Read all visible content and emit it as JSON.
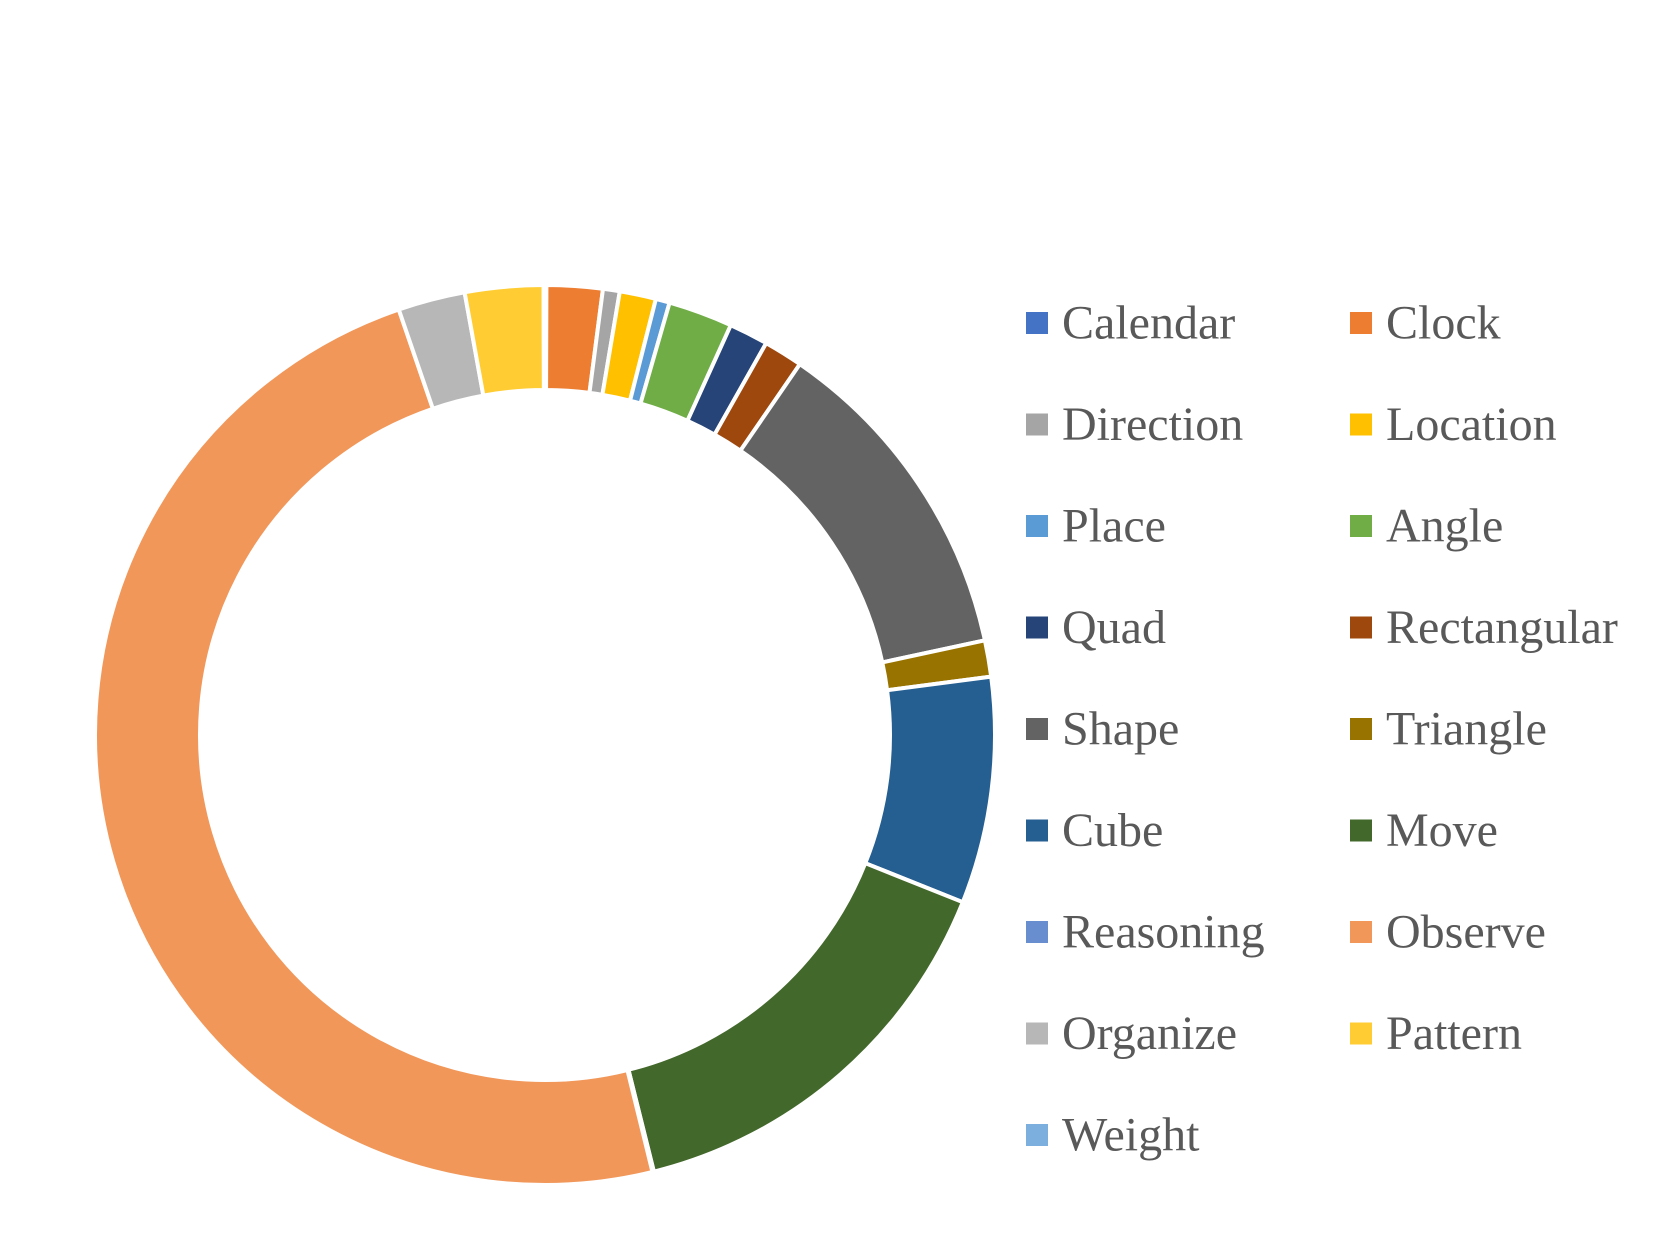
{
  "chart_data": {
    "type": "pie",
    "variant": "doughnut",
    "legend_position": "right",
    "series": [
      {
        "name": "Calendar",
        "value": 0.05,
        "color": "#4472C4"
      },
      {
        "name": "Clock",
        "value": 2.0,
        "color": "#ED7D31"
      },
      {
        "name": "Direction",
        "value": 0.6,
        "color": "#A5A5A5"
      },
      {
        "name": "Location",
        "value": 1.3,
        "color": "#FFC000"
      },
      {
        "name": "Place",
        "value": 0.5,
        "color": "#5B9BD5"
      },
      {
        "name": "Angle",
        "value": 2.3,
        "color": "#70AD47"
      },
      {
        "name": "Quad",
        "value": 1.4,
        "color": "#264478"
      },
      {
        "name": "Rectangular",
        "value": 1.4,
        "color": "#9E480E"
      },
      {
        "name": "Shape",
        "value": 12.0,
        "color": "#636363"
      },
      {
        "name": "Triangle",
        "value": 1.3,
        "color": "#997300"
      },
      {
        "name": "Cube",
        "value": 8.1,
        "color": "#255E91"
      },
      {
        "name": "Move",
        "value": 15.0,
        "color": "#43682B"
      },
      {
        "name": "Reasoning",
        "value": 0.05,
        "color": "#698ED0"
      },
      {
        "name": "Observe",
        "value": 48.4,
        "color": "#F1975A"
      },
      {
        "name": "Organize",
        "value": 2.4,
        "color": "#B7B7B7"
      },
      {
        "name": "Pattern",
        "value": 2.8,
        "color": "#FFCD33"
      },
      {
        "name": "Weight",
        "value": 0.05,
        "color": "#7CAFDD"
      }
    ]
  }
}
